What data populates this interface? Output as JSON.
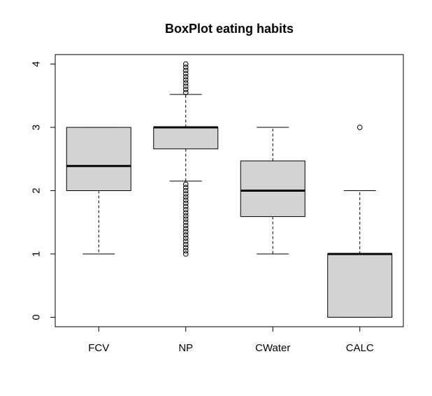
{
  "chart_data": {
    "type": "boxplot",
    "title": "BoxPlot eating habits",
    "xlabel": "",
    "ylabel": "",
    "ylim": [
      -0.15,
      4.15
    ],
    "yticks": [
      0,
      1,
      2,
      3,
      4
    ],
    "ytick_labels": [
      "0",
      "1",
      "2",
      "3",
      "4"
    ],
    "grid": false,
    "box_fill": "#d3d3d3",
    "stroke_color": "#000000",
    "categories": [
      "FCV",
      "NP",
      "CWater",
      "CALC"
    ],
    "boxes": [
      {
        "category": "FCV",
        "whisker_low": 1.0,
        "q1": 2.0,
        "median": 2.39,
        "q3": 3.0,
        "whisker_high": 3.0,
        "outliers": []
      },
      {
        "category": "NP",
        "whisker_low": 2.15,
        "q1": 2.66,
        "median": 3.0,
        "q3": 3.0,
        "whisker_high": 3.52,
        "outliers": [
          1.0,
          1.05,
          1.1,
          1.15,
          1.2,
          1.25,
          1.3,
          1.35,
          1.4,
          1.45,
          1.5,
          1.55,
          1.6,
          1.65,
          1.7,
          1.75,
          1.8,
          1.85,
          1.9,
          1.95,
          2.0,
          2.05,
          2.1,
          3.55,
          3.6,
          3.65,
          3.7,
          3.75,
          3.8,
          3.85,
          3.9,
          3.95,
          4.0
        ]
      },
      {
        "category": "CWater",
        "whisker_low": 1.0,
        "q1": 1.59,
        "median": 2.0,
        "q3": 2.47,
        "whisker_high": 3.0,
        "outliers": []
      },
      {
        "category": "CALC",
        "whisker_low": 0.0,
        "q1": 0.0,
        "median": 1.0,
        "q3": 1.0,
        "whisker_high": 2.0,
        "outliers": [
          3.0
        ]
      }
    ]
  }
}
